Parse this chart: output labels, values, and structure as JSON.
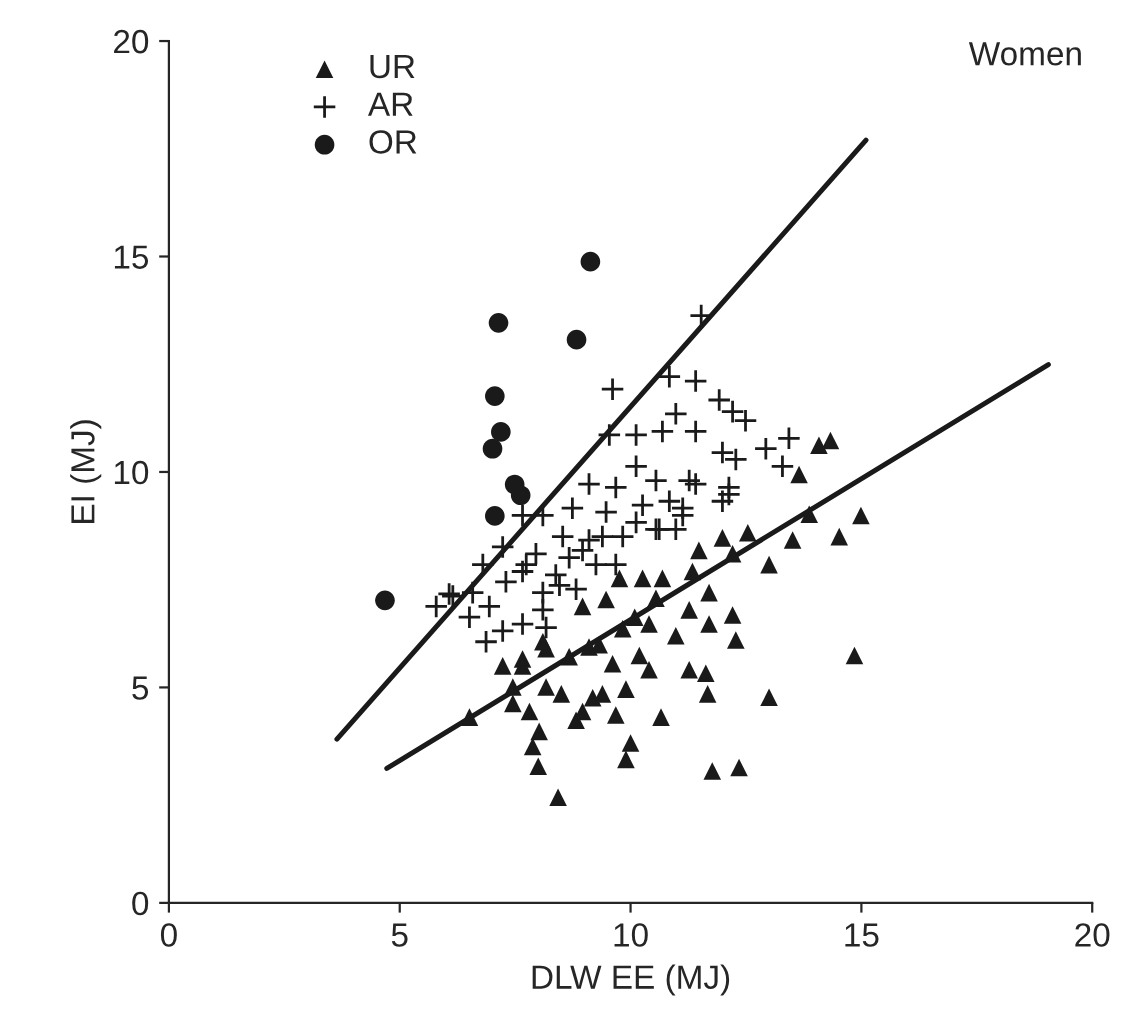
{
  "chart_data": {
    "type": "scatter",
    "xlabel": "DLW EE (MJ)",
    "ylabel": "EI (MJ)",
    "annotations": [
      "Women"
    ],
    "xlim": [
      0,
      20
    ],
    "ylim": [
      0,
      20
    ],
    "xticks": [
      0,
      5,
      10,
      15,
      20
    ],
    "yticks": [
      0,
      5,
      10,
      15,
      20
    ],
    "grid": false,
    "legend": "top left",
    "series": [
      {
        "name": "UR",
        "color": "#1a1a1a",
        "marker": "triangle",
        "x": [
          6.51,
          7.45,
          7.81,
          8.02,
          7.88,
          8.0,
          8.43,
          7.45,
          7.66,
          8.17,
          8.5,
          8.82,
          8.96,
          9.18,
          9.39,
          9.68,
          9.9,
          10.0,
          9.9,
          10.66,
          10.19,
          10.4,
          9.61,
          9.1,
          8.67,
          8.17,
          7.66,
          9.83,
          10.4,
          10.98,
          11.27,
          11.63,
          11.67,
          11.7,
          12.28,
          12.21,
          11.27,
          11.7,
          11.34,
          10.69,
          10.55,
          10.09,
          9.47,
          9.76,
          10.26,
          9.32,
          11.99,
          12.54,
          12.21,
          13.0,
          13.0,
          11.77,
          12.35,
          11.48,
          7.23,
          8.96,
          8.1,
          14.08,
          14.33,
          13.65,
          13.87,
          14.99,
          13.51,
          14.52,
          14.85
        ],
        "values": [
          4.31,
          4.63,
          4.44,
          3.98,
          3.63,
          3.17,
          2.45,
          5.01,
          5.66,
          5.01,
          4.85,
          4.24,
          4.44,
          4.76,
          4.85,
          4.36,
          4.96,
          3.71,
          3.33,
          4.31,
          5.74,
          5.41,
          5.55,
          5.94,
          5.71,
          5.9,
          5.5,
          6.36,
          6.47,
          6.2,
          5.41,
          5.33,
          4.85,
          6.47,
          6.1,
          6.68,
          6.8,
          7.2,
          7.69,
          7.53,
          7.07,
          6.63,
          7.04,
          7.53,
          7.53,
          5.99,
          8.47,
          8.59,
          8.1,
          7.85,
          4.77,
          3.06,
          3.14,
          8.18,
          5.5,
          6.88,
          6.06,
          10.62,
          10.73,
          9.94,
          9.02,
          8.99,
          8.42,
          8.5,
          5.74
        ]
      },
      {
        "name": "AR",
        "color": "#1a1a1a",
        "marker": "cross",
        "x": [
          11.53,
          9.61,
          10.84,
          11.41,
          10.98,
          11.92,
          12.21,
          11.41,
          9.54,
          10.12,
          10.69,
          11.99,
          10.12,
          9.1,
          9.68,
          10.55,
          11.41,
          12.13,
          8.74,
          9.47,
          10.26,
          11.13,
          8.1,
          7.66,
          8.53,
          9.1,
          9.83,
          10.55,
          7.23,
          7.95,
          8.67,
          9.25,
          6.8,
          7.66,
          8.38,
          7.3,
          6.58,
          6.07,
          8.1,
          8.82,
          12.49,
          13.43,
          12.93,
          13.29,
          12.28,
          11.99,
          11.27,
          10.84,
          10.62,
          11.13,
          5.79,
          6.15,
          6.51,
          6.94,
          7.23,
          7.66,
          8.1,
          8.46,
          7.74,
          8.96,
          9.68,
          9.39,
          10.12,
          12.13,
          10.98,
          6.87,
          8.17
        ],
        "values": [
          13.63,
          11.92,
          12.21,
          12.11,
          11.35,
          11.67,
          11.4,
          10.94,
          10.86,
          10.86,
          10.94,
          10.45,
          10.13,
          9.72,
          9.64,
          9.8,
          9.72,
          9.48,
          9.16,
          9.07,
          9.23,
          9.16,
          8.99,
          8.99,
          8.5,
          8.42,
          8.5,
          8.67,
          8.26,
          8.1,
          8.01,
          7.85,
          7.85,
          7.69,
          7.61,
          7.45,
          7.2,
          7.17,
          7.2,
          7.28,
          11.19,
          10.78,
          10.54,
          10.13,
          10.29,
          9.32,
          9.8,
          9.32,
          8.67,
          8.99,
          6.88,
          7.12,
          6.63,
          6.88,
          6.31,
          6.47,
          6.8,
          7.37,
          7.85,
          8.18,
          7.85,
          8.5,
          8.83,
          9.64,
          8.67,
          6.06,
          6.39
        ]
      },
      {
        "name": "OR",
        "color": "#1a1a1a",
        "marker": "circle",
        "x": [
          9.13,
          7.14,
          8.83,
          7.06,
          7.19,
          7.01,
          7.49,
          7.62,
          7.06,
          4.68
        ],
        "values": [
          14.88,
          13.46,
          13.07,
          11.76,
          10.93,
          10.54,
          9.71,
          9.46,
          8.98,
          7.02
        ]
      },
      {
        "type": "line",
        "color": "#1a1a1a",
        "marker": "none",
        "line_style": "solid",
        "x": [
          3.64,
          15.1
        ],
        "values": [
          3.8,
          17.7
        ]
      },
      {
        "type": "line",
        "color": "#1a1a1a",
        "marker": "none",
        "line_style": "solid",
        "x": [
          4.72,
          19.05
        ],
        "values": [
          3.12,
          12.49
        ]
      }
    ]
  }
}
